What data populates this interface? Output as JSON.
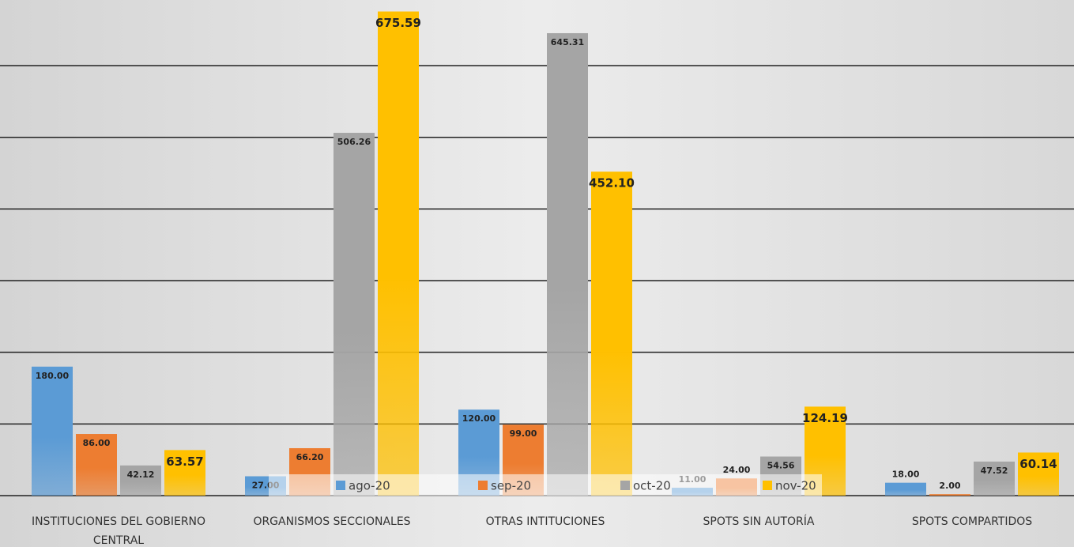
{
  "chart_data": {
    "type": "bar",
    "categories": [
      "INSTITUCIONES DEL GOBIERNO CENTRAL",
      "ORGANISMOS SECCIONALES",
      "OTRAS INTITUCIONES",
      "SPOTS SIN AUTORÍA",
      "SPOTS COMPARTIDOS"
    ],
    "series": [
      {
        "name": "ago-20",
        "color": "#5b9bd5",
        "values": [
          180,
          27,
          120,
          11,
          18
        ],
        "value_labels": [
          "180.00",
          "27.00",
          "120.00",
          "11.00",
          "18.00"
        ]
      },
      {
        "name": "sep-20",
        "color": "#ed7d31",
        "values": [
          86,
          66.2,
          99,
          24,
          2
        ],
        "value_labels": [
          "86.00",
          "66.20",
          "99.00",
          "24.00",
          "2.00"
        ]
      },
      {
        "name": "oct-20",
        "color": "#a5a5a5",
        "values": [
          42.12,
          506.26,
          645.31,
          54.56,
          47.52
        ],
        "value_labels": [
          "42.12",
          "506.26",
          "645.31",
          "54.56",
          "47.52"
        ]
      },
      {
        "name": "nov-20",
        "color": "#ffc000",
        "values": [
          63.57,
          675.59,
          452.1,
          124.19,
          60.14
        ],
        "value_labels": [
          "63.57",
          "675.59",
          "452.10",
          "124.19",
          "60.14"
        ]
      }
    ],
    "ylim": [
      0,
      700
    ],
    "yticks": [
      0,
      100,
      200,
      300,
      400,
      500,
      600
    ],
    "grid": true,
    "legend": "bottom"
  }
}
